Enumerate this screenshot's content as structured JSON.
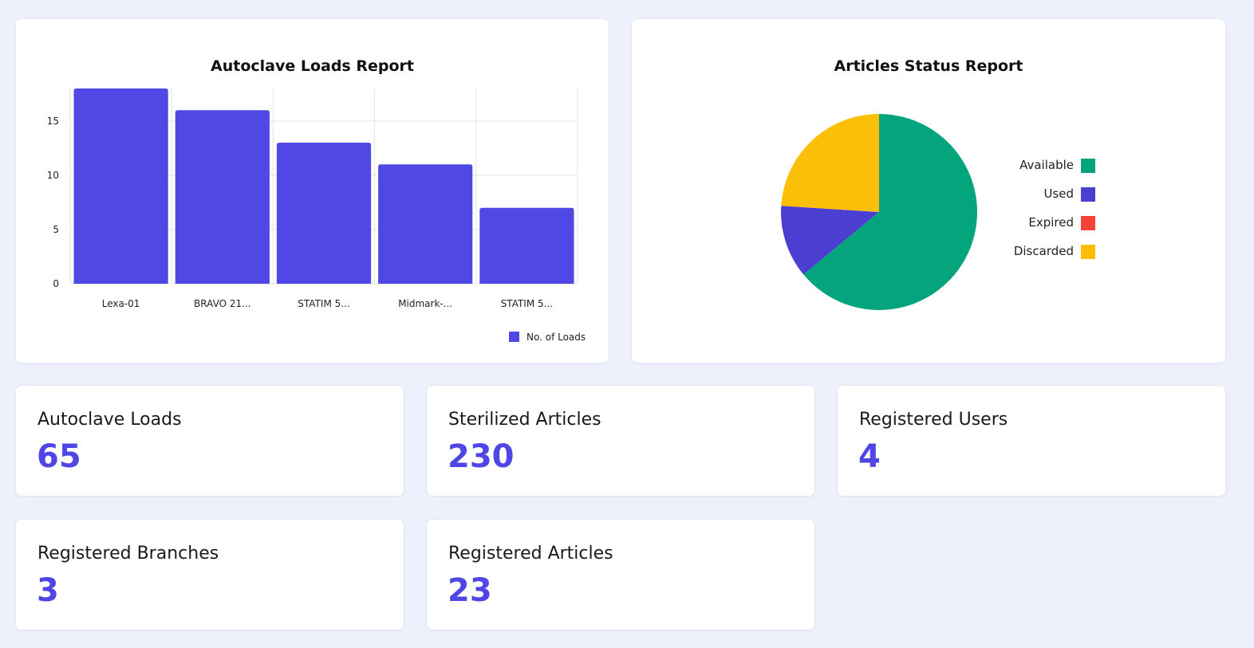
{
  "bar_report": {
    "title": "Autoclave Loads Report"
  },
  "pie_report": {
    "title": "Articles Status Report"
  },
  "stats": {
    "autoclave_loads": {
      "label": "Autoclave Loads",
      "value": "65"
    },
    "sterilized_articles": {
      "label": "Sterilized Articles",
      "value": "230"
    },
    "registered_users": {
      "label": "Registered Users",
      "value": "4"
    },
    "registered_branches": {
      "label": "Registered Branches",
      "value": "3"
    },
    "registered_articles": {
      "label": "Registered Articles",
      "value": "23"
    }
  },
  "colors": {
    "accent": "#4f46e5",
    "bar": "#5048e5",
    "available": "#04a47c",
    "used": "#4b3fd1",
    "expired": "#f44336",
    "discarded": "#fcbf08",
    "page_background": "#eef1fc",
    "grid": "#e3e3e3"
  },
  "chart_data": [
    {
      "type": "bar",
      "title": "Autoclave Loads Report",
      "categories": [
        "Lexa-01",
        "BRAVO 21...",
        "STATIM 5...",
        "Midmark-...",
        "STATIM 5..."
      ],
      "series": [
        {
          "name": "No. of Loads",
          "values": [
            18,
            16,
            13,
            11,
            7
          ]
        }
      ],
      "xlabel": "",
      "ylabel": "",
      "ylim": [
        0,
        18
      ],
      "yticks": [
        0,
        5,
        10,
        15
      ],
      "grid": true,
      "legend": "bottom-right"
    },
    {
      "type": "pie",
      "title": "Articles Status Report",
      "labels": [
        "Available",
        "Used",
        "Expired",
        "Discarded"
      ],
      "values": [
        64,
        12,
        0,
        24
      ],
      "unit": "percent of articles",
      "legend": "right"
    }
  ]
}
